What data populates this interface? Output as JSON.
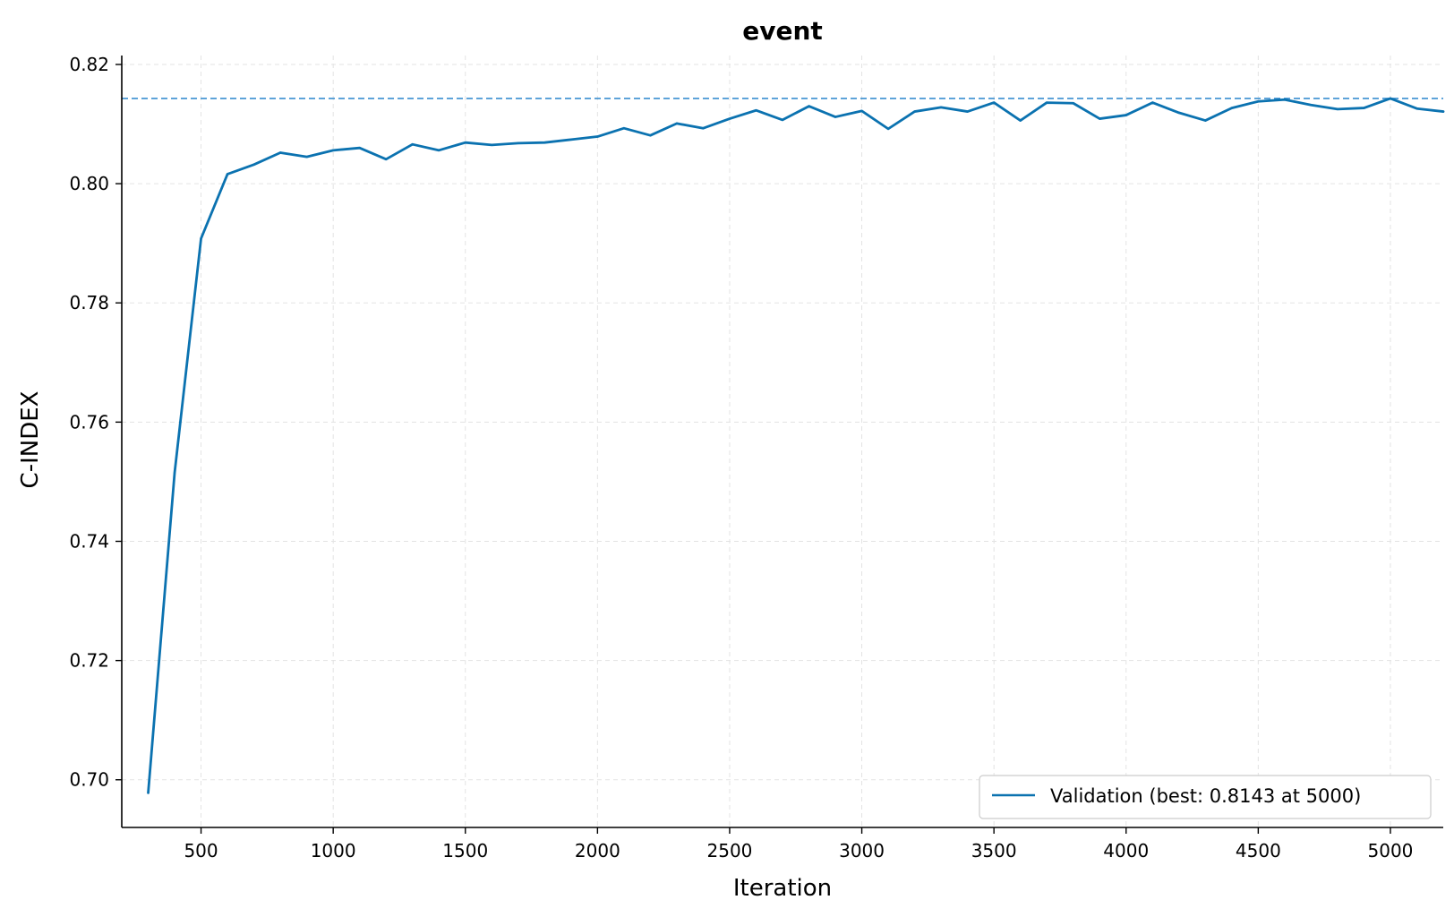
{
  "chart_data": {
    "type": "line",
    "title": "event",
    "xlabel": "Iteration",
    "ylabel": "C-INDEX",
    "xlim": [
      200,
      5200
    ],
    "ylim": [
      0.692,
      0.8215
    ],
    "xticks": [
      500,
      1000,
      1500,
      2000,
      2500,
      3000,
      3500,
      4000,
      4500,
      5000
    ],
    "xtick_labels": [
      "500",
      "1000",
      "1500",
      "2000",
      "2500",
      "3000",
      "3500",
      "4000",
      "4500",
      "5000"
    ],
    "yticks": [
      0.7,
      0.72,
      0.74,
      0.76,
      0.78,
      0.8,
      0.82
    ],
    "ytick_labels": [
      "0.70",
      "0.72",
      "0.74",
      "0.76",
      "0.78",
      "0.80",
      "0.82"
    ],
    "grid": true,
    "legend_position": "lower right",
    "series": [
      {
        "name": "Validation (best: 0.8143 at 5000)",
        "color": "#0b72b0",
        "x": [
          300,
          400,
          500,
          600,
          700,
          800,
          900,
          1000,
          1100,
          1200,
          1300,
          1400,
          1500,
          1600,
          1700,
          1800,
          1900,
          2000,
          2100,
          2200,
          2300,
          2400,
          2500,
          2600,
          2700,
          2800,
          2900,
          3000,
          3100,
          3200,
          3300,
          3400,
          3500,
          3600,
          3700,
          3800,
          3900,
          4000,
          4100,
          4200,
          4300,
          4400,
          4500,
          4600,
          4700,
          4800,
          4900,
          5000,
          5100,
          5200
        ],
        "y": [
          0.6978,
          0.7515,
          0.7908,
          0.8016,
          0.8032,
          0.8052,
          0.8045,
          0.8056,
          0.806,
          0.8041,
          0.8066,
          0.8056,
          0.8069,
          0.8065,
          0.8068,
          0.8069,
          0.8074,
          0.8079,
          0.8093,
          0.8081,
          0.8101,
          0.8093,
          0.8109,
          0.8123,
          0.8107,
          0.813,
          0.8112,
          0.8122,
          0.8092,
          0.8121,
          0.8128,
          0.8121,
          0.8136,
          0.8106,
          0.8136,
          0.8135,
          0.8109,
          0.8115,
          0.8136,
          0.8119,
          0.8106,
          0.8127,
          0.8138,
          0.8141,
          0.8132,
          0.8125,
          0.8127,
          0.8143,
          0.8126,
          0.8121
        ]
      }
    ],
    "best_line": {
      "value": 0.8143,
      "color": "#3a8fd0",
      "style": "dashed"
    }
  }
}
